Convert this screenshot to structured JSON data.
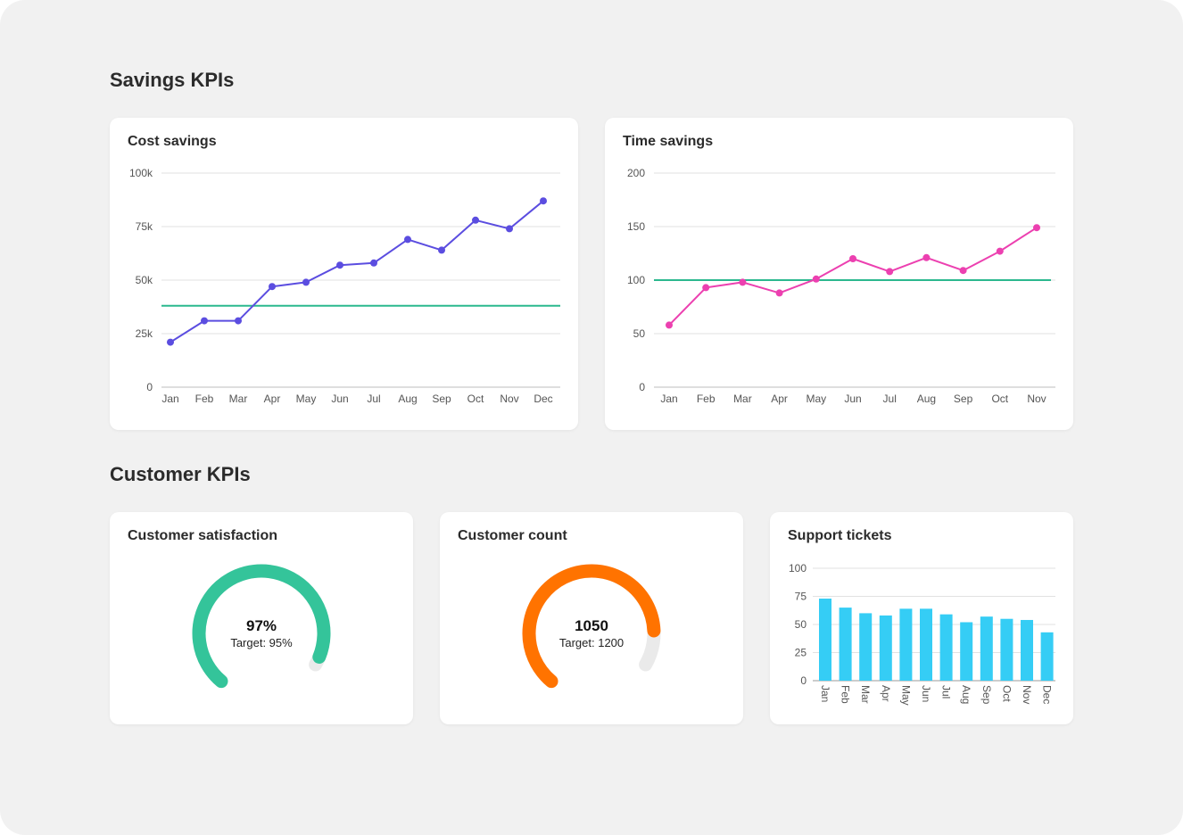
{
  "colors": {
    "background": "#f1f1f1",
    "card": "#ffffff",
    "grid": "#e2e2e2",
    "target_line": "#2bb88e",
    "cost_line": "#5b4de0",
    "time_line": "#ec40b0",
    "satisfaction": "#34c49a",
    "count": "#ff7300",
    "bars": "#35cdf5",
    "gauge_track": "#eaeaea"
  },
  "sections": {
    "savings_title": "Savings KPIs",
    "customer_title": "Customer KPIs"
  },
  "chart_data": [
    {
      "id": "cost",
      "type": "line",
      "title": "Cost savings",
      "categories": [
        "Jan",
        "Feb",
        "Mar",
        "Apr",
        "May",
        "Jun",
        "Jul",
        "Aug",
        "Sep",
        "Oct",
        "Nov",
        "Dec"
      ],
      "values": [
        21000,
        31000,
        31000,
        47000,
        49000,
        57000,
        58000,
        69000,
        64000,
        78000,
        74000,
        87000
      ],
      "target": 38000,
      "ylim": [
        0,
        100000
      ],
      "yticks": [
        0,
        25000,
        50000,
        75000,
        100000
      ],
      "ytick_labels": [
        "0",
        "25k",
        "50k",
        "75k",
        "100k"
      ],
      "grid": true
    },
    {
      "id": "time",
      "type": "line",
      "title": "Time savings",
      "categories": [
        "Jan",
        "Feb",
        "Mar",
        "Apr",
        "May",
        "Jun",
        "Jul",
        "Aug",
        "Sep",
        "Oct",
        "Nov"
      ],
      "values": [
        58,
        93,
        98,
        88,
        101,
        120,
        108,
        121,
        109,
        127,
        149
      ],
      "target": 100,
      "ylim": [
        0,
        200
      ],
      "yticks": [
        0,
        50,
        100,
        150,
        200
      ],
      "ytick_labels": [
        "0",
        "50",
        "100",
        "150",
        "200"
      ],
      "grid": true
    },
    {
      "id": "tickets",
      "type": "bar",
      "title": "Support tickets",
      "categories": [
        "Jan",
        "Feb",
        "Mar",
        "Apr",
        "May",
        "Jun",
        "Jul",
        "Aug",
        "Sep",
        "Oct",
        "Nov",
        "Dec"
      ],
      "values": [
        73,
        65,
        60,
        58,
        64,
        64,
        59,
        52,
        57,
        55,
        54,
        43
      ],
      "ylim": [
        0,
        100
      ],
      "yticks": [
        0,
        25,
        50,
        75,
        100
      ],
      "ytick_labels": [
        "0",
        "25",
        "50",
        "75",
        "100"
      ],
      "grid": true
    }
  ],
  "gauges": [
    {
      "id": "satisfaction",
      "title": "Customer satisfaction",
      "value_label": "97%",
      "target_label": "Target: 95%",
      "fraction": 0.97
    },
    {
      "id": "count",
      "title": "Customer count",
      "value_label": "1050",
      "target_label": "Target: 1200",
      "fraction": 0.875
    }
  ]
}
